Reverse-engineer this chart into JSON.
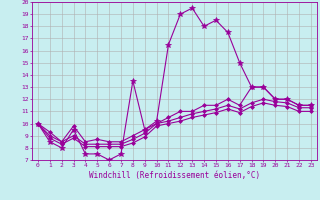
{
  "xlabel": "Windchill (Refroidissement éolien,°C)",
  "bg_color": "#c8eef0",
  "grid_color": "#b0b0b0",
  "line_color": "#990099",
  "xlim": [
    -0.5,
    23.5
  ],
  "ylim": [
    7,
    20
  ],
  "xticks": [
    0,
    1,
    2,
    3,
    4,
    5,
    6,
    7,
    8,
    9,
    10,
    11,
    12,
    13,
    14,
    15,
    16,
    17,
    18,
    19,
    20,
    21,
    22,
    23
  ],
  "yticks": [
    7,
    8,
    9,
    10,
    11,
    12,
    13,
    14,
    15,
    16,
    17,
    18,
    19,
    20
  ],
  "series": [
    [
      10,
      8.5,
      8,
      9.5,
      7.5,
      7.5,
      7,
      7.5,
      13.5,
      9.5,
      10.2,
      16.5,
      19,
      19.5,
      18,
      18.5,
      17.5,
      15,
      13,
      13,
      12,
      12,
      11.5,
      11.5
    ],
    [
      10,
      9.3,
      8.5,
      9.8,
      8.5,
      8.7,
      8.5,
      8.5,
      9.0,
      9.5,
      10,
      10.5,
      11,
      11,
      11.5,
      11.5,
      12,
      11.5,
      13,
      13,
      12,
      12,
      11.5,
      11.5
    ],
    [
      10,
      9.0,
      8.5,
      9.0,
      8.3,
      8.3,
      8.3,
      8.3,
      8.7,
      9.2,
      10,
      10.2,
      10.5,
      10.8,
      11,
      11.2,
      11.5,
      11.2,
      11.7,
      12,
      11.8,
      11.7,
      11.3,
      11.3
    ],
    [
      10,
      8.8,
      8.3,
      8.8,
      8.1,
      8.1,
      8.1,
      8.1,
      8.4,
      8.9,
      9.8,
      10,
      10.2,
      10.5,
      10.7,
      10.9,
      11.2,
      10.9,
      11.4,
      11.7,
      11.5,
      11.4,
      11.0,
      11.0
    ]
  ]
}
